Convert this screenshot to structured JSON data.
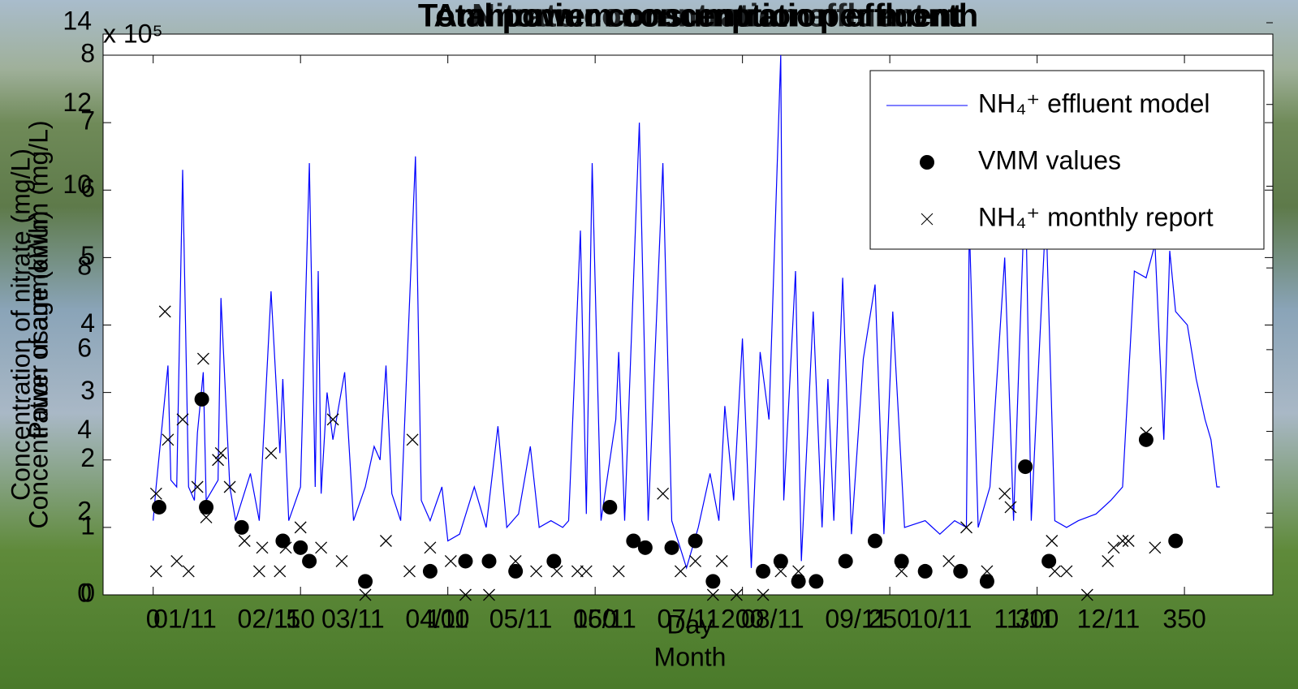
{
  "chart_data": [
    {
      "type": "line",
      "title": "Ammonium concentration effluent",
      "xlabel": "Day",
      "ylabel": "Concentration of ammonium (mg/L)",
      "xlim": [
        -17,
        380
      ],
      "xticks": [
        0,
        50,
        100,
        150,
        200,
        250,
        300,
        350
      ],
      "ylim": [
        0,
        8
      ],
      "yticks": [
        0,
        1,
        2,
        3,
        4,
        5,
        6,
        7,
        8
      ],
      "legend": "upper right",
      "series": [
        {
          "name": "NH₄⁺ effluent model",
          "color": "#0000ff",
          "marker": "line",
          "x": [
            0,
            1,
            5,
            6,
            8,
            10,
            12,
            14,
            15,
            17,
            18,
            22,
            23,
            26,
            28,
            33,
            36,
            40,
            43,
            44,
            46,
            50,
            53,
            55,
            56,
            57,
            59,
            61,
            65,
            68,
            72,
            75,
            77,
            79,
            81,
            84,
            89,
            91,
            94,
            98,
            100,
            104,
            109,
            113,
            117,
            120,
            124,
            128,
            131,
            135,
            139,
            141,
            145,
            147,
            149,
            152,
            157,
            158,
            160,
            165,
            168,
            173,
            176,
            181,
            185,
            189,
            192,
            194,
            197,
            200,
            203,
            206,
            209,
            213,
            214,
            218,
            220,
            224,
            227,
            229,
            231,
            234,
            237,
            241,
            245,
            248,
            251,
            255,
            262,
            267,
            272,
            276,
            277,
            280,
            284,
            289,
            292,
            296,
            298,
            303,
            306,
            310,
            314,
            320,
            325,
            329,
            333,
            337,
            340,
            343,
            345,
            347,
            351,
            354,
            357,
            359,
            361,
            362
          ],
          "values": [
            1.1,
            1.6,
            3.4,
            1.7,
            1.6,
            6.3,
            1.6,
            1.4,
            2.4,
            3.3,
            1.4,
            1.7,
            4.4,
            1.6,
            1.1,
            1.8,
            1.1,
            4.5,
            2.1,
            3.2,
            1.1,
            1.6,
            6.4,
            1.6,
            4.8,
            1.5,
            3.0,
            2.3,
            3.3,
            1.1,
            1.6,
            2.2,
            2.0,
            3.4,
            1.5,
            1.1,
            6.5,
            1.4,
            1.1,
            1.6,
            0.8,
            0.9,
            1.6,
            1.0,
            2.5,
            1.0,
            1.2,
            2.2,
            1.0,
            1.1,
            1.0,
            1.1,
            5.4,
            1.2,
            6.4,
            1.1,
            2.6,
            3.6,
            1.1,
            7.0,
            1.1,
            6.4,
            1.1,
            0.4,
            1.0,
            1.8,
            1.1,
            2.8,
            1.4,
            3.8,
            0.4,
            3.6,
            2.6,
            8.0,
            1.4,
            4.8,
            0.5,
            4.2,
            1.0,
            3.2,
            1.1,
            4.7,
            0.9,
            3.5,
            4.6,
            0.9,
            4.2,
            1.0,
            1.1,
            0.9,
            1.1,
            1.0,
            5.5,
            1.0,
            1.6,
            5.0,
            1.1,
            6.2,
            1.1,
            5.7,
            1.1,
            1.0,
            1.1,
            1.2,
            1.4,
            1.6,
            4.8,
            4.7,
            5.2,
            2.3,
            5.1,
            4.2,
            4.0,
            3.2,
            2.6,
            2.3,
            1.6,
            1.6
          ]
        },
        {
          "name": "VMM values",
          "color": "#000000",
          "marker": "dot",
          "x": [
            2,
            16.5,
            18,
            30,
            44,
            50,
            53,
            72,
            94,
            106,
            114,
            123,
            136,
            155,
            163,
            167,
            176,
            184,
            190,
            207,
            213,
            219,
            225,
            235,
            245,
            254,
            262,
            274,
            283,
            296,
            304,
            337,
            347
          ],
          "values": [
            1.3,
            2.9,
            1.3,
            1.0,
            0.8,
            0.7,
            0.5,
            0.2,
            0.35,
            0.5,
            0.5,
            0.35,
            0.5,
            1.3,
            0.8,
            0.7,
            0.7,
            0.8,
            0.2,
            0.35,
            0.5,
            0.2,
            0.2,
            0.5,
            0.8,
            0.5,
            0.35,
            0.35,
            0.2,
            1.9,
            0.5,
            2.3,
            0.8
          ]
        },
        {
          "name": "NH₄⁺ monthly report",
          "color": "#000000",
          "marker": "cross",
          "x": [
            1,
            1,
            4,
            5,
            8,
            10,
            12,
            15,
            17,
            18,
            22,
            23,
            26,
            31,
            36,
            37,
            40,
            43,
            45,
            50,
            57,
            61,
            64,
            72,
            79,
            87,
            88,
            94,
            101,
            106,
            114,
            123,
            130,
            137,
            144,
            147,
            158,
            173,
            179,
            184,
            190,
            193,
            198,
            207,
            213,
            219,
            254,
            270,
            276,
            283,
            289,
            291,
            305,
            306,
            310,
            317,
            324,
            326,
            329,
            331,
            337,
            340
          ],
          "values": [
            1.5,
            0.35,
            4.2,
            2.3,
            0.5,
            2.6,
            0.35,
            1.6,
            3.5,
            1.15,
            2.0,
            2.1,
            1.6,
            0.8,
            0.35,
            0.7,
            2.1,
            0.35,
            0.7,
            1.0,
            0.7,
            2.6,
            0.5,
            0,
            0.8,
            0.35,
            2.3,
            0.7,
            0.5,
            0,
            0,
            0.5,
            0.35,
            0.35,
            0.35,
            0.35,
            0.35,
            1.5,
            0.35,
            0.5,
            0,
            0.5,
            0,
            0,
            0.35,
            0.35,
            0.35,
            0.5,
            1.0,
            0.35,
            1.5,
            1.3,
            0.8,
            0.35,
            0.35,
            0,
            0.5,
            0.7,
            0.8,
            0.8,
            2.4,
            0.7
          ]
        }
      ]
    },
    {
      "type": "bar",
      "title": "Total power consumption per month",
      "xlabel": "Month",
      "ylabel": "Power usage (kWh)",
      "exponent": "x 10⁵",
      "categories": [
        "01/11",
        "02/11",
        "03/11",
        "04/11",
        "05/11",
        "06/11",
        "07/11",
        "08/11",
        "09/11",
        "10/11",
        "11/11",
        "12/11"
      ],
      "ylim": [
        0,
        14
      ],
      "yticks": [
        0,
        2,
        4,
        6,
        8,
        10,
        12,
        14
      ]
    },
    {
      "type": "line",
      "title": "Nitrate concentration effluent",
      "ylabel": "Concentration of nitrate (mg/L)"
    }
  ]
}
